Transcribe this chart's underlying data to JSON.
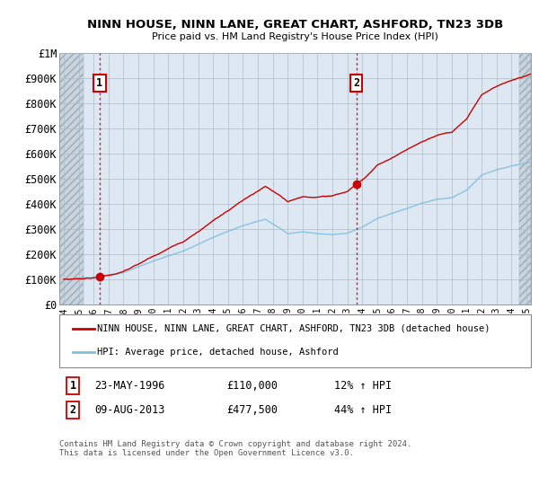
{
  "title": "NINN HOUSE, NINN LANE, GREAT CHART, ASHFORD, TN23 3DB",
  "subtitle": "Price paid vs. HM Land Registry's House Price Index (HPI)",
  "ylim": [
    0,
    1000000
  ],
  "yticks": [
    0,
    100000,
    200000,
    300000,
    400000,
    500000,
    600000,
    700000,
    800000,
    900000,
    1000000
  ],
  "ytick_labels": [
    "£0",
    "£100K",
    "£200K",
    "£300K",
    "£400K",
    "£500K",
    "£600K",
    "£700K",
    "£800K",
    "£900K",
    "£1M"
  ],
  "xlim_start": 1993.7,
  "xlim_end": 2025.3,
  "xticks": [
    1994,
    1995,
    1996,
    1997,
    1998,
    1999,
    2000,
    2001,
    2002,
    2003,
    2004,
    2005,
    2006,
    2007,
    2008,
    2009,
    2010,
    2011,
    2012,
    2013,
    2014,
    2015,
    2016,
    2017,
    2018,
    2019,
    2020,
    2021,
    2022,
    2023,
    2024,
    2025
  ],
  "sale1_x": 1996.39,
  "sale1_y": 110000,
  "sale1_label": "1",
  "sale2_x": 2013.6,
  "sale2_y": 477500,
  "sale2_label": "2",
  "legend_line1": "NINN HOUSE, NINN LANE, GREAT CHART, ASHFORD, TN23 3DB (detached house)",
  "legend_line2": "HPI: Average price, detached house, Ashford",
  "annotation1_date": "23-MAY-1996",
  "annotation1_price": "£110,000",
  "annotation1_hpi": "12% ↑ HPI",
  "annotation2_date": "09-AUG-2013",
  "annotation2_price": "£477,500",
  "annotation2_hpi": "44% ↑ HPI",
  "footnote": "Contains HM Land Registry data © Crown copyright and database right 2024.\nThis data is licensed under the Open Government Licence v3.0.",
  "hpi_color": "#7fbfdf",
  "price_color": "#cc0000",
  "bg_color": "#dde8f3",
  "hatch_bg": "#c8d4de",
  "grid_color": "#b0bcc8",
  "sale_marker_color": "#cc0000"
}
